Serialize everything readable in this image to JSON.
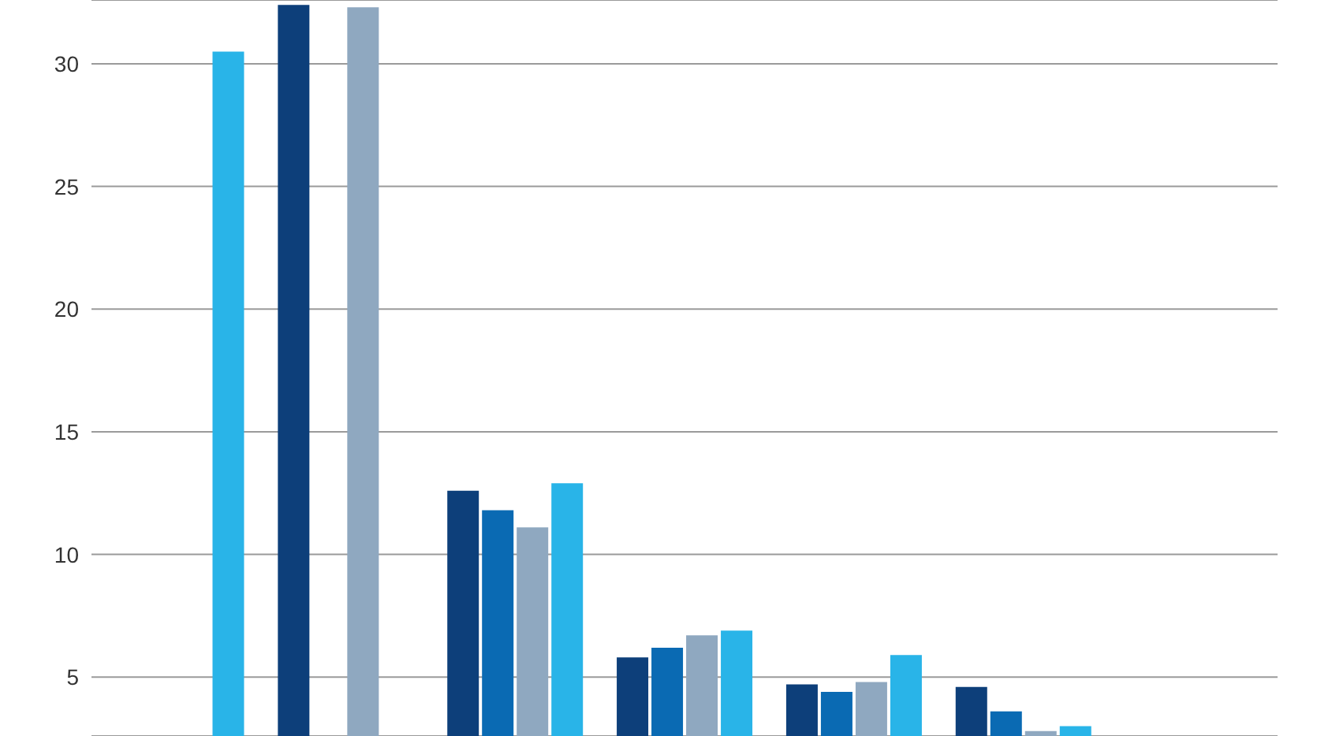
{
  "chart_data": {
    "type": "bar",
    "categories": [
      null,
      null,
      null,
      null,
      null,
      null,
      null
    ],
    "series": [
      {
        "color": "#0d3f7a",
        "values": [
          null,
          32.4,
          12.6,
          5.8,
          4.7,
          4.6,
          null
        ]
      },
      {
        "color": "#0a6ab3",
        "values": [
          null,
          null,
          11.8,
          6.2,
          4.4,
          3.6,
          null
        ]
      },
      {
        "color": "#8fa8c0",
        "values": [
          null,
          32.3,
          11.1,
          6.7,
          4.8,
          2.8,
          null
        ]
      },
      {
        "color": "#29b4e8",
        "values": [
          30.5,
          null,
          12.9,
          6.9,
          5.9,
          3.0,
          null
        ]
      }
    ],
    "ylim": [
      2.6,
      32.6
    ],
    "yticks": [
      5,
      10,
      15,
      20,
      25,
      30
    ],
    "grid": "y",
    "tick_labels": "y",
    "legend": false
  }
}
